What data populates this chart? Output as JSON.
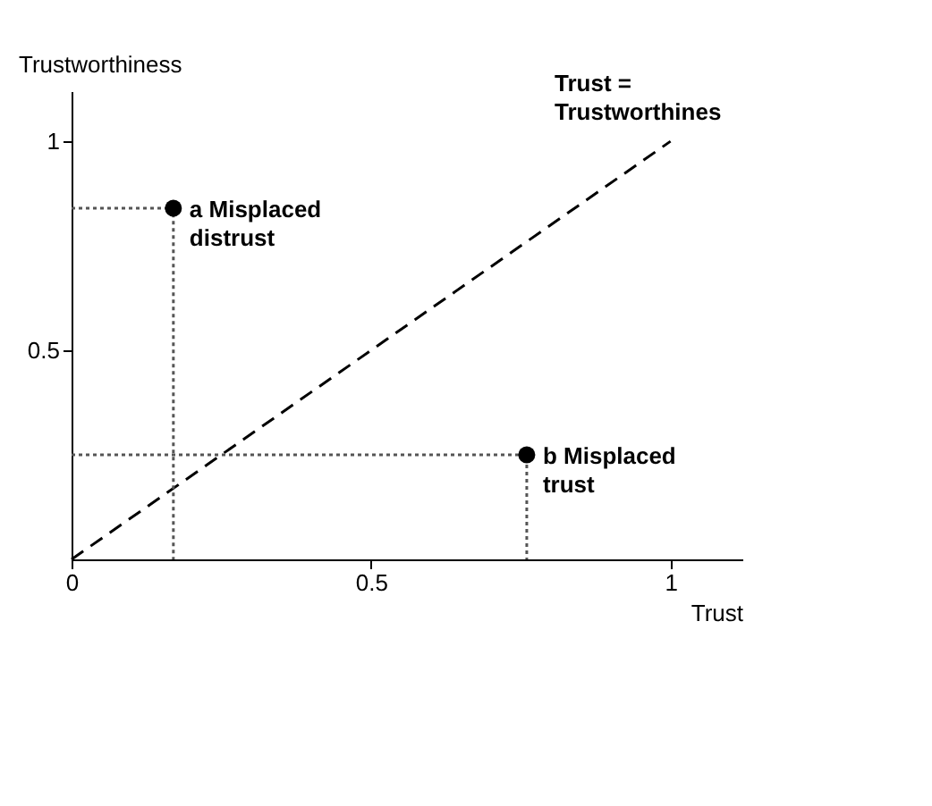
{
  "chart_data": {
    "type": "scatter",
    "xlabel": "Trust",
    "ylabel": "Trustworthiness",
    "xlim": [
      0,
      1.12
    ],
    "ylim": [
      0,
      1.12
    ],
    "xticks": [
      0,
      0.5,
      1
    ],
    "yticks": [
      0.5,
      1
    ],
    "grid": false,
    "series": [
      {
        "type": "line",
        "x": [
          0,
          1
        ],
        "values": [
          0,
          1
        ],
        "color": "#000000",
        "line_style": "dashed",
        "marker": "none"
      },
      {
        "type": "line",
        "x": [
          0,
          0.17,
          0.17
        ],
        "values": [
          0.84,
          0.84,
          0
        ],
        "color": "#555555",
        "line_style": "dotted",
        "marker": "none"
      },
      {
        "type": "line",
        "x": [
          0,
          0.76,
          0.76
        ],
        "values": [
          0.25,
          0.25,
          0
        ],
        "color": "#555555",
        "line_style": "dotted",
        "marker": "none"
      },
      {
        "x": [
          0.17,
          0.76
        ],
        "values": [
          0.84,
          0.25
        ],
        "color": "#000000",
        "marker": "circle"
      }
    ],
    "annotations": [
      {
        "text": "a Misplaced distrust",
        "x": 0.17,
        "y": 0.84
      },
      {
        "text": "b Misplaced trust",
        "x": 0.76,
        "y": 0.25
      },
      "Trust = Trustworthines"
    ]
  }
}
